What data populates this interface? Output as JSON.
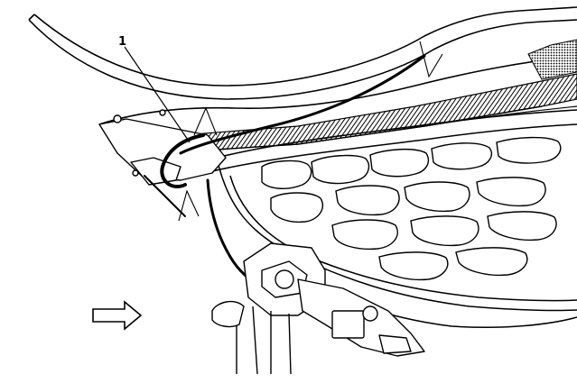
{
  "diagram": {
    "callouts": [
      {
        "label": "1"
      }
    ],
    "icons": {
      "direction_arrow": "right-arrow-icon"
    },
    "colors": {
      "line": "#000000",
      "background": "#ffffff",
      "hatch": "#000000"
    }
  }
}
